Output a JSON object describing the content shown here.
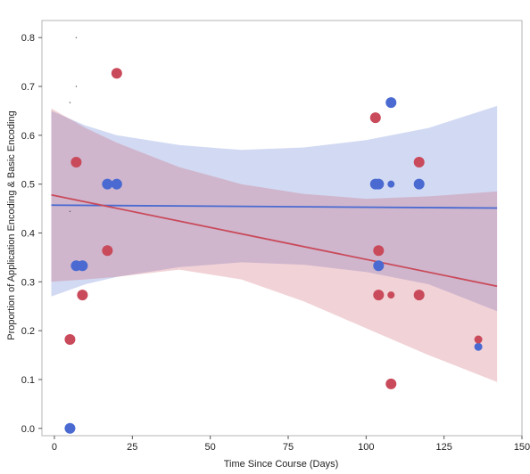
{
  "chart_data": {
    "type": "scatter",
    "title": "",
    "xlabel": "Time Since Course (Days)",
    "ylabel": "Proportion of Application Encoding &  Basic Encoding",
    "xlim": [
      -4,
      150
    ],
    "ylim": [
      -0.015,
      0.835
    ],
    "xticks": [
      0,
      25,
      50,
      75,
      100,
      125,
      150
    ],
    "xtick_labels": [
      "0",
      "25",
      "50",
      "75",
      "100",
      "125",
      "150"
    ],
    "yticks": [
      0.0,
      0.1,
      0.2,
      0.3,
      0.4,
      0.5,
      0.6,
      0.7,
      0.8
    ],
    "ytick_labels": [
      "0.0",
      "0.1",
      "0.2",
      "0.3",
      "0.4",
      "0.5",
      "0.6",
      "0.7",
      "0.8"
    ],
    "grid": false,
    "legend": "none",
    "series": [
      {
        "color": "#4a6ad1",
        "points": [
          {
            "x": 5,
            "y": 0.0,
            "size": 6
          },
          {
            "x": 7,
            "y": 0.333,
            "size": 6
          },
          {
            "x": 9,
            "y": 0.333,
            "size": 6
          },
          {
            "x": 17,
            "y": 0.5,
            "size": 6
          },
          {
            "x": 20,
            "y": 0.5,
            "size": 6
          },
          {
            "x": 103,
            "y": 0.5,
            "size": 6
          },
          {
            "x": 104,
            "y": 0.5,
            "size": 6
          },
          {
            "x": 104,
            "y": 0.333,
            "size": 6
          },
          {
            "x": 108,
            "y": 0.667,
            "size": 6
          },
          {
            "x": 108,
            "y": 0.5,
            "size": 4
          },
          {
            "x": 117,
            "y": 0.5,
            "size": 6
          },
          {
            "x": 136,
            "y": 0.167,
            "size": 4.5
          }
        ],
        "fit": {
          "x": [
            -1,
            142
          ],
          "y": [
            0.457,
            0.451
          ]
        },
        "band": {
          "x": [
            -1,
            10,
            20,
            40,
            60,
            80,
            100,
            120,
            142
          ],
          "upper": [
            0.65,
            0.62,
            0.6,
            0.58,
            0.57,
            0.575,
            0.59,
            0.615,
            0.66
          ],
          "lower": [
            0.27,
            0.295,
            0.31,
            0.33,
            0.34,
            0.335,
            0.32,
            0.295,
            0.24
          ]
        }
      },
      {
        "color": "#c94a5a",
        "points": [
          {
            "x": 5,
            "y": 0.182,
            "size": 6
          },
          {
            "x": 7,
            "y": 0.545,
            "size": 6
          },
          {
            "x": 9,
            "y": 0.273,
            "size": 6
          },
          {
            "x": 17,
            "y": 0.364,
            "size": 6
          },
          {
            "x": 20,
            "y": 0.727,
            "size": 6
          },
          {
            "x": 103,
            "y": 0.636,
            "size": 6
          },
          {
            "x": 104,
            "y": 0.364,
            "size": 6
          },
          {
            "x": 104,
            "y": 0.273,
            "size": 6
          },
          {
            "x": 108,
            "y": 0.273,
            "size": 4
          },
          {
            "x": 108,
            "y": 0.091,
            "size": 6
          },
          {
            "x": 117,
            "y": 0.545,
            "size": 6
          },
          {
            "x": 117,
            "y": 0.273,
            "size": 6
          },
          {
            "x": 136,
            "y": 0.182,
            "size": 4.5
          }
        ],
        "fit": {
          "x": [
            -1,
            142
          ],
          "y": [
            0.478,
            0.291
          ]
        },
        "band": {
          "x": [
            -1,
            10,
            20,
            40,
            60,
            80,
            100,
            120,
            142
          ],
          "upper": [
            0.655,
            0.615,
            0.585,
            0.535,
            0.5,
            0.48,
            0.47,
            0.475,
            0.485
          ],
          "lower": [
            0.3,
            0.305,
            0.31,
            0.325,
            0.305,
            0.26,
            0.205,
            0.15,
            0.095
          ]
        }
      }
    ],
    "minor_marks": [
      {
        "x": 7,
        "y": 0.8
      },
      {
        "x": 7,
        "y": 0.7
      },
      {
        "x": 5,
        "y": 0.667
      },
      {
        "x": 5,
        "y": 0.444
      }
    ]
  }
}
